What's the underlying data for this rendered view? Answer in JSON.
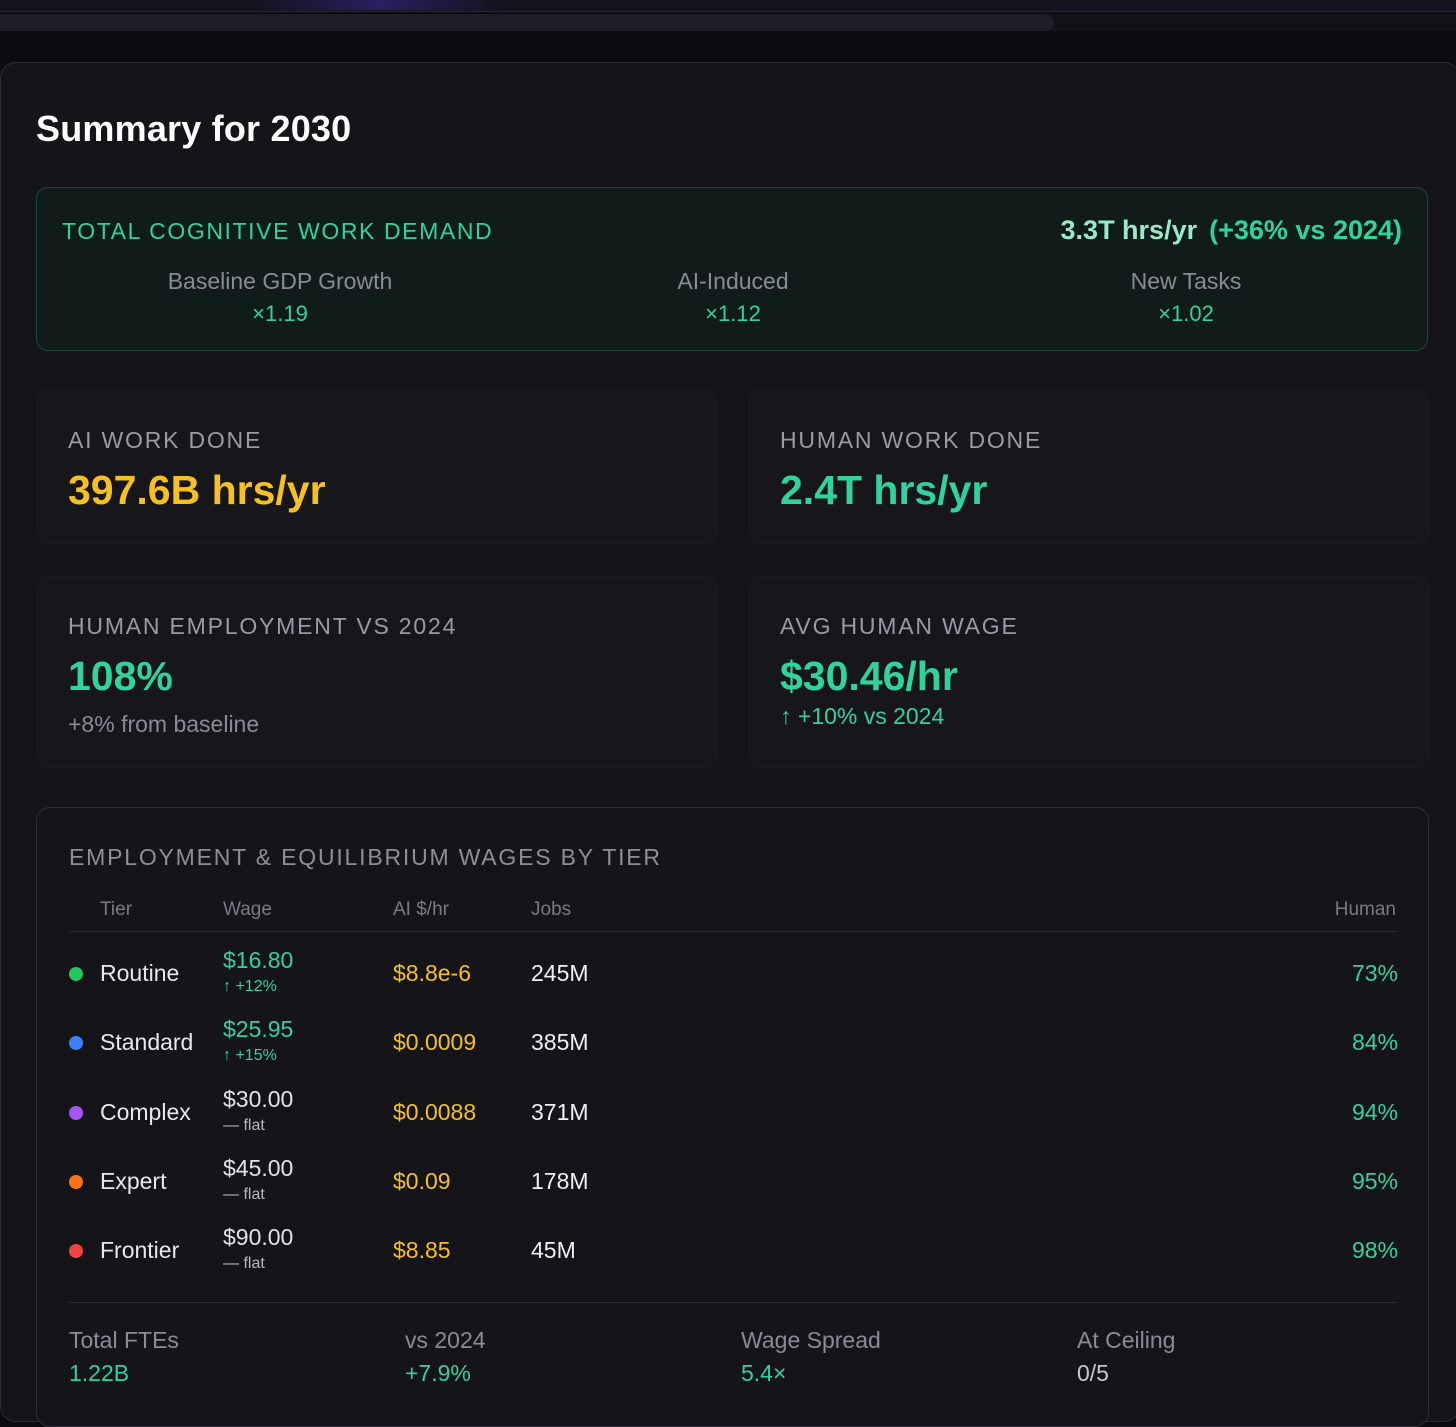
{
  "summary": {
    "title": "Summary for 2030"
  },
  "demand": {
    "label": "TOTAL COGNITIVE WORK DEMAND",
    "value": "3.3T hrs/yr",
    "change": "(+36% vs 2024)",
    "factors": [
      {
        "name": "Baseline GDP Growth",
        "value": "×1.19"
      },
      {
        "name": "AI-Induced",
        "value": "×1.12"
      },
      {
        "name": "New Tasks",
        "value": "×1.02"
      }
    ]
  },
  "cards": {
    "ai_work": {
      "label": "AI WORK DONE",
      "value": "397.6B hrs/yr"
    },
    "human_work": {
      "label": "HUMAN WORK DONE",
      "value": "2.4T hrs/yr"
    },
    "employment": {
      "label": "HUMAN EMPLOYMENT VS 2024",
      "value": "108%",
      "sub": "+8% from baseline"
    },
    "wage": {
      "label": "AVG HUMAN WAGE",
      "value": "$30.46/hr",
      "sub": "↑ +10% vs 2024"
    }
  },
  "tier_table": {
    "title": "EMPLOYMENT & EQUILIBRIUM WAGES BY TIER",
    "headers": {
      "tier": "Tier",
      "wage": "Wage",
      "ai": "AI $/hr",
      "jobs": "Jobs",
      "human": "Human"
    },
    "rows": [
      {
        "tier": "Routine",
        "dot_color": "#22c55e",
        "wage": "$16.80",
        "change": "↑ +12%",
        "ai": "$8.8e-6",
        "jobs": "245M",
        "human": "73%"
      },
      {
        "tier": "Standard",
        "dot_color": "#3b82f6",
        "wage": "$25.95",
        "change": "↑ +15%",
        "ai": "$0.0009",
        "jobs": "385M",
        "human": "84%"
      },
      {
        "tier": "Complex",
        "dot_color": "#a855f7",
        "wage": "$30.00",
        "change": "— flat",
        "ai": "$0.0088",
        "jobs": "371M",
        "human": "94%"
      },
      {
        "tier": "Expert",
        "dot_color": "#f97316",
        "wage": "$45.00",
        "change": "— flat",
        "ai": "$0.09",
        "jobs": "178M",
        "human": "95%"
      },
      {
        "tier": "Frontier",
        "dot_color": "#ef4444",
        "wage": "$90.00",
        "change": "— flat",
        "ai": "$8.85",
        "jobs": "45M",
        "human": "98%"
      }
    ],
    "stats": [
      {
        "label": "Total FTEs",
        "value": "1.22B"
      },
      {
        "label": "vs 2024",
        "value": "+7.9%"
      },
      {
        "label": "Wage Spread",
        "value": "5.4×"
      },
      {
        "label": "At Ceiling",
        "value": "0/5"
      }
    ]
  },
  "colors": {
    "accent_green": "#2fd39b",
    "accent_amber": "#f6c021"
  }
}
